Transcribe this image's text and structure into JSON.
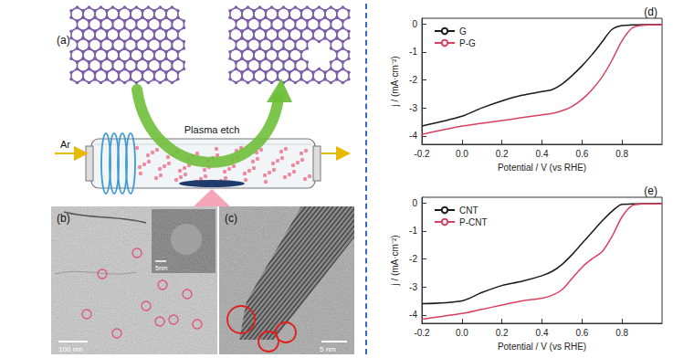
{
  "panels": {
    "a": {
      "label": "(a)",
      "process": "Plasma etch",
      "gas": "Ar"
    },
    "b": {
      "label": "(b)",
      "scale_bar": "100 nm",
      "inset_scale_bar": "5nm"
    },
    "c": {
      "label": "(c)",
      "scale_bar": "5 nm"
    }
  },
  "chart_data": [
    {
      "type": "line",
      "title": "(d)",
      "x_label": "Potential / V (vs RHE)",
      "y_label": "j / (mA·cm⁻²)",
      "x": [
        -0.2,
        0,
        0.1,
        0.2,
        0.3,
        0.4,
        0.45,
        0.5,
        0.55,
        0.6,
        0.65,
        0.7,
        0.75,
        0.8,
        0.85,
        0.9,
        1.0
      ],
      "series": [
        {
          "name": "G",
          "color": "#1a1a1a",
          "values": [
            -3.65,
            -3.3,
            -3.0,
            -2.75,
            -2.55,
            -2.42,
            -2.35,
            -2.15,
            -1.85,
            -1.5,
            -1.1,
            -0.65,
            -0.2,
            -0.06,
            -0.04,
            -0.03,
            -0.02
          ]
        },
        {
          "name": "P-G",
          "color": "#d9405f",
          "values": [
            -3.95,
            -3.65,
            -3.55,
            -3.45,
            -3.35,
            -3.25,
            -3.2,
            -3.1,
            -2.95,
            -2.7,
            -2.35,
            -1.9,
            -1.3,
            -0.6,
            -0.15,
            -0.05,
            -0.03
          ]
        }
      ],
      "xlim": [
        -0.2,
        1.0
      ],
      "ylim": [
        -4.3,
        0.2
      ],
      "xticks": [
        -0.2,
        {
          "value": 0,
          "label": "0.0"
        },
        0.2,
        0.4,
        0.6,
        0.8
      ],
      "yticks": [
        -4,
        -3,
        -2,
        -1,
        0
      ],
      "grid": false,
      "legend": "upper left"
    },
    {
      "type": "line",
      "title": "(e)",
      "x_label": "Potential / V (vs RHE)",
      "y_label": "j / (mA·cm⁻²)",
      "x": [
        -0.2,
        0,
        0.1,
        0.2,
        0.3,
        0.4,
        0.45,
        0.5,
        0.55,
        0.6,
        0.65,
        0.7,
        0.75,
        0.8,
        0.85,
        0.9,
        1.0
      ],
      "series": [
        {
          "name": "CNT",
          "color": "#1a1a1a",
          "values": [
            -3.6,
            -3.5,
            -3.2,
            -2.95,
            -2.8,
            -2.6,
            -2.45,
            -2.2,
            -1.85,
            -1.45,
            -1.05,
            -0.65,
            -0.3,
            -0.05,
            -0.04,
            -0.03,
            -0.02
          ]
        },
        {
          "name": "P-CNT",
          "color": "#d9405f",
          "values": [
            -4.15,
            -3.95,
            -3.8,
            -3.65,
            -3.5,
            -3.4,
            -3.3,
            -3.1,
            -2.7,
            -2.3,
            -2.0,
            -1.75,
            -1.2,
            -0.5,
            -0.1,
            -0.04,
            -0.03
          ]
        }
      ],
      "xlim": [
        -0.2,
        1.0
      ],
      "ylim": [
        -4.3,
        0.2
      ],
      "xticks": [
        -0.2,
        {
          "value": 0,
          "label": "0.0"
        },
        0.2,
        0.4,
        0.6,
        0.8
      ],
      "yticks": [
        -4,
        -3,
        -2,
        -1,
        0
      ],
      "grid": false,
      "legend": "upper left"
    }
  ]
}
